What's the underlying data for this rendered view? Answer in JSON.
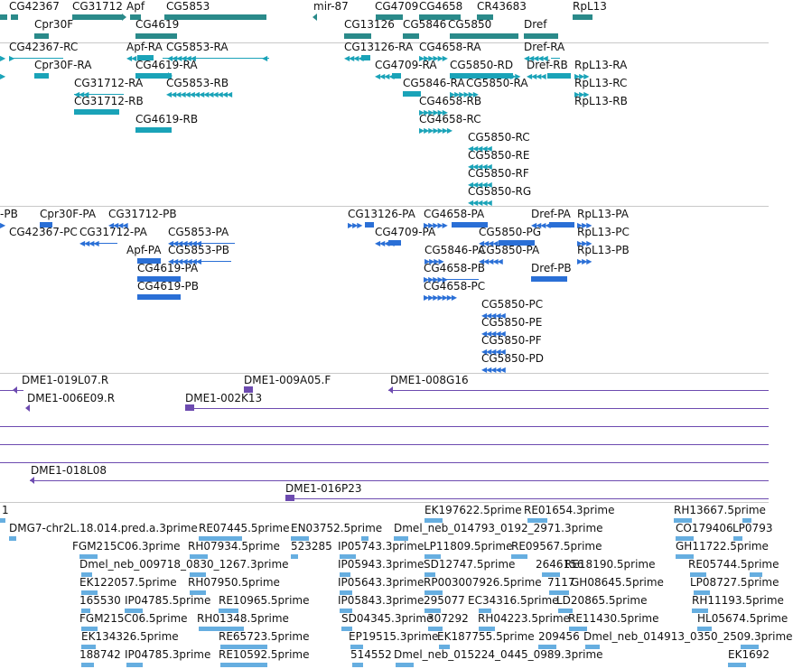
{
  "colors": {
    "gene_teal": "#2a8a8a",
    "transcript_cyan": "#1aa3b8",
    "transcript_blue": "#2a6fd6",
    "clone_purple": "#6d4bb0",
    "est_lightblue": "#66aee0",
    "separator": "#c8c8c8"
  },
  "tracks": {
    "genes": {
      "labels": [
        "CG42367",
        "CG31712",
        "Apf",
        "CG5853",
        "mir-87",
        "CG4709",
        "CG4658",
        "CR43683",
        "RpL13",
        "Cpr30F",
        "CG4619",
        "CG13126",
        "CG5846",
        "CG5850",
        "Dref"
      ]
    },
    "transcripts_ra": {
      "labels": [
        "CG42367-RC",
        "Apf-RA",
        "CG5853-RA",
        "CG13126-RA",
        "CG4658-RA",
        "Dref-RA",
        "Cpr30F-RA",
        "CG4619-RA",
        "CG4709-RA",
        "CG5850-RD",
        "Dref-RB",
        "RpL13-RA",
        "CG31712-RA",
        "CG5853-RB",
        "CG5846-RA",
        "CG5850-RA",
        "RpL13-RC",
        "CG31712-RB",
        "CG4658-RB",
        "RpL13-RB",
        "CG4619-RB",
        "CG4658-RC",
        "CG5850-RC",
        "CG5850-RE",
        "CG5850-RF",
        "CG5850-RG"
      ]
    },
    "transcripts_pa": {
      "labels": [
        "-PB",
        "Cpr30F-PA",
        "CG31712-PB",
        "CG13126-PA",
        "CG4658-PA",
        "Dref-PA",
        "RpL13-PA",
        "CG42367-PC",
        "CG31712-PA",
        "CG5853-PA",
        "CG4709-PA",
        "CG5850-PG",
        "RpL13-PC",
        "Apf-PA",
        "CG5853-PB",
        "CG5846-PA",
        "CG5850-PA",
        "RpL13-PB",
        "CG4619-PA",
        "CG4658-PB",
        "Dref-PB",
        "CG4619-PB",
        "CG4658-PC",
        "CG5850-PC",
        "CG5850-PE",
        "CG5850-PF",
        "CG5850-PD"
      ]
    },
    "clones": {
      "labels": [
        "DME1-019L07.R",
        "DME1-009A05.F",
        "DME1-008G16",
        "DME1-006E09.R",
        "DME1-002K13",
        "DME1-018L08",
        "DME1-016P23"
      ]
    },
    "ests": {
      "labels": [
        "1",
        "EK197622.5prime",
        "RE01654.3prime",
        "RH13667.5prime",
        "DMG7-chr2L.18.014.pred.a.3prime",
        "RE07445.5prime",
        "EN03752.5prime",
        "Dmel_neb_014793_0192_2971.3prime",
        "CO179406",
        "LP0793",
        "FGM215C06.3prime",
        "RH07934.5prime",
        "523285",
        "IP05743.3prime",
        "LP11809.5prime",
        "RE09567.5prime",
        "GH11722.5prime",
        "Dmel_neb_009718_0830_1267.3prime",
        "IP05943.3prime",
        "SD12747.5prime",
        "2646156",
        "RE18190.5prime",
        "RE05744.5prime",
        "EK122057.5prime",
        "RH07950.5prime",
        "IP05643.3prime",
        "RP003007926.5prime",
        "7117",
        "GH08645.5prime",
        "LP08727.5prime",
        "165530",
        "IP04785.5prime",
        "RE10965.5prime",
        "IP05843.3prime",
        "295077",
        "EC34316.5prime",
        "LD20865.5prime",
        "RH11193.5prime",
        "FGM215C06.5prime",
        "RH01348.5prime",
        "SD04345.3prime",
        "307292",
        "RH04223.5prime",
        "RE11430.5prime",
        "HL05674.5prime",
        "EK134326.5prime",
        "RE65723.5prime",
        "EP19515.3prime",
        "EK187755.5prime",
        "209456",
        "Dmel_neb_014913_0350_2509.3prime",
        "188742",
        "IP04785.3prime",
        "RE10592.5prime",
        "514552",
        "Dmel_neb_015224_0445_0989.3prime",
        "EK1692"
      ]
    }
  }
}
